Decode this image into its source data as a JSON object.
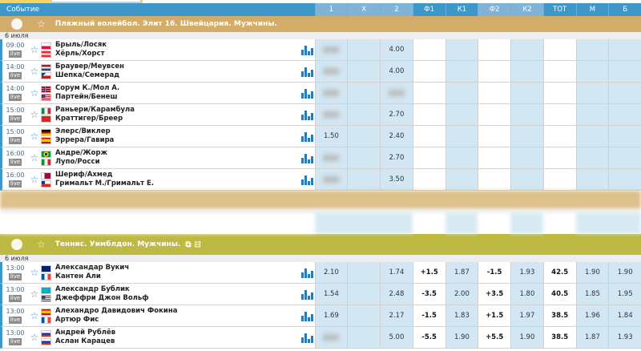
{
  "header": {
    "event_label": "Событие",
    "columns": [
      "1",
      "X",
      "2",
      "Ф1",
      "К1",
      "Ф2",
      "К2",
      "ТОТ",
      "М",
      "Б"
    ]
  },
  "colors": {
    "header_blue": "#3e97c9",
    "volley_header": "#d4ac6a",
    "tennis_header": "#bdb942",
    "odds_cell": "#d2e7f3"
  },
  "volleyball": {
    "title": "Пляжный волейбол. Элит 16. Швейцария. Мужчины.",
    "icon": "volleyball-icon",
    "date": "6 июля",
    "rows": [
      {
        "time": "09:00",
        "live": "live",
        "team1": "Брыль/Лосяк",
        "team2": "Хёрль/Хорст",
        "flag1": "pl",
        "flag2": "at",
        "odds": [
          "",
          "",
          "4.00",
          "",
          "",
          "",
          "",
          "",
          "",
          ""
        ],
        "blurred": [
          0
        ]
      },
      {
        "time": "14:00",
        "live": "live",
        "team1": "Браувер/Меувсен",
        "team2": "Шепка/Семерад",
        "flag1": "nl",
        "flag2": "cz",
        "odds": [
          "",
          "",
          "4.00",
          "",
          "",
          "",
          "",
          "",
          "",
          ""
        ],
        "blurred": [
          0
        ]
      },
      {
        "time": "14:00",
        "live": "live",
        "team1": "Сорум К./Мол А.",
        "team2": "Партейн/Бенеш",
        "flag1": "no",
        "flag2": "us",
        "odds": [
          "",
          "",
          "",
          "",
          "",
          "",
          "",
          "",
          "",
          ""
        ],
        "blurred": [
          0,
          2
        ]
      },
      {
        "time": "15:00",
        "live": "live",
        "team1": "Раньери/Карамбула",
        "team2": "Краттигер/Бреер",
        "flag1": "it",
        "flag2": "ch",
        "odds": [
          "",
          "",
          "2.70",
          "",
          "",
          "",
          "",
          "",
          "",
          ""
        ],
        "blurred": [
          0
        ]
      },
      {
        "time": "15:00",
        "live": "live",
        "team1": "Элерс/Виклер",
        "team2": "Эррера/Гавира",
        "flag1": "de",
        "flag2": "es",
        "odds": [
          "1.50",
          "",
          "2.40",
          "",
          "",
          "",
          "",
          "",
          "",
          ""
        ],
        "blurred": []
      },
      {
        "time": "16:00",
        "live": "live",
        "team1": "Андре/Жорж",
        "team2": "Лупо/Росси",
        "flag1": "br",
        "flag2": "it",
        "odds": [
          "",
          "",
          "2.70",
          "",
          "",
          "",
          "",
          "",
          "",
          ""
        ],
        "blurred": [
          0
        ]
      },
      {
        "time": "16:00",
        "live": "live",
        "team1": "Шериф/Ахмед",
        "team2": "Гримальт М./Гримальт Е.",
        "flag1": "qa",
        "flag2": "cl",
        "odds": [
          "",
          "",
          "3.50",
          "",
          "",
          "",
          "",
          "",
          "",
          ""
        ],
        "blurred": [
          0
        ]
      }
    ]
  },
  "tennis": {
    "title": "Теннис. Уимблдон. Мужчины.",
    "icon": "tennis-ball-icon",
    "date": "6 июля",
    "rows": [
      {
        "time": "13:00",
        "live": "live",
        "team1": "Александар Вукич",
        "team2": "Кантен Али",
        "flag1": "au",
        "flag2": "fr",
        "odds": [
          "2.10",
          "",
          "1.74",
          "+1.5",
          "1.87",
          "-1.5",
          "1.93",
          "42.5",
          "1.90",
          "1.90"
        ],
        "blurred": []
      },
      {
        "time": "13:00",
        "live": "live",
        "team1": "Александр Бублик",
        "team2": "Джеффри Джон Вольф",
        "flag1": "kz",
        "flag2": "us",
        "odds": [
          "1.54",
          "",
          "2.48",
          "-3.5",
          "2.00",
          "+3.5",
          "1.80",
          "40.5",
          "1.85",
          "1.95"
        ],
        "blurred": []
      },
      {
        "time": "13:00",
        "live": "live",
        "team1": "Алехандро Давидович Фокина",
        "team2": "Артюр Фис",
        "flag1": "es",
        "flag2": "fr",
        "odds": [
          "1.69",
          "",
          "2.17",
          "-1.5",
          "1.83",
          "+1.5",
          "1.97",
          "38.5",
          "1.96",
          "1.84"
        ],
        "blurred": []
      },
      {
        "time": "13:00",
        "live": "live",
        "team1": "Андрей Рублёв",
        "team2": "Аслан Карацев",
        "flag1": "ru",
        "flag2": "ru",
        "odds": [
          "",
          "",
          "5.00",
          "-5.5",
          "1.90",
          "+5.5",
          "1.90",
          "38.5",
          "1.87",
          "1.93"
        ],
        "blurred": [
          0
        ]
      }
    ]
  }
}
